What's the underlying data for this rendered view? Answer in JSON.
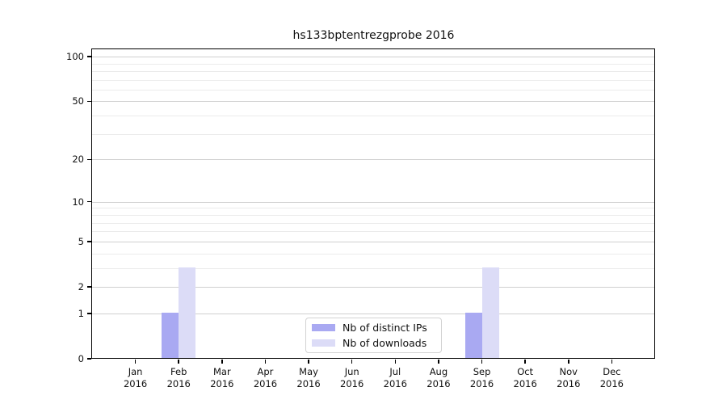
{
  "title": "hs133bptentrezgprobe 2016",
  "chart_data": {
    "type": "bar",
    "title": "hs133bptentrezgprobe 2016",
    "categories": [
      "Jan",
      "Feb",
      "Mar",
      "Apr",
      "May",
      "Jun",
      "Jul",
      "Aug",
      "Sep",
      "Oct",
      "Nov",
      "Dec"
    ],
    "year": "2016",
    "series": [
      {
        "name": "Nb of distinct IPs",
        "color": "#a9a9f2",
        "values": [
          0,
          1,
          0,
          0,
          0,
          0,
          0,
          0,
          1,
          0,
          0,
          0
        ]
      },
      {
        "name": "Nb of downloads",
        "color": "#dcdcf7",
        "values": [
          0,
          3,
          0,
          0,
          0,
          0,
          0,
          0,
          3,
          0,
          0,
          0
        ]
      }
    ],
    "xlabel": "",
    "ylabel": "",
    "y_scale": "log1p",
    "y_major_ticks": [
      100,
      50,
      20,
      10,
      5,
      2,
      1,
      0
    ],
    "y_minor_ticks": [
      3,
      4,
      6,
      7,
      8,
      9,
      30,
      40,
      60,
      70,
      80,
      90
    ],
    "ylim": [
      0,
      112
    ],
    "grid": "on",
    "legend_position": "bottom-center",
    "legend_entries": [
      "Nb of distinct IPs",
      "Nb of downloads"
    ]
  },
  "colors": {
    "bar_distinct_ips": "#a9a9f2",
    "bar_downloads": "#dcdcf7",
    "grid_major": "#d0d0d0",
    "grid_minor": "#ebebeb",
    "spine": "#000000"
  }
}
